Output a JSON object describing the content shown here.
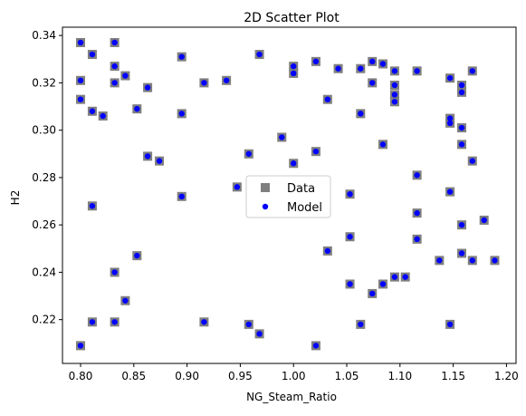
{
  "chart_data": {
    "type": "scatter",
    "title": "2D Scatter Plot",
    "xlabel": "NG_Steam_Ratio",
    "ylabel": "H2",
    "xlim": [
      0.783,
      1.209
    ],
    "ylim": [
      0.2015,
      0.3435
    ],
    "xticks": [
      0.8,
      0.85,
      0.9,
      0.95,
      1.0,
      1.05,
      1.1,
      1.15,
      1.2
    ],
    "xtick_labels": [
      "0.80",
      "0.85",
      "0.90",
      "0.95",
      "1.00",
      "1.05",
      "1.10",
      "1.15",
      "1.20"
    ],
    "yticks": [
      0.22,
      0.24,
      0.26,
      0.28,
      0.3,
      0.32,
      0.34
    ],
    "ytick_labels": [
      "0.22",
      "0.24",
      "0.26",
      "0.28",
      "0.30",
      "0.32",
      "0.34"
    ],
    "grid": false,
    "legend_position": "center",
    "series": [
      {
        "name": "Data",
        "marker": "square",
        "color": "#7f7f7f",
        "x": [
          0.8,
          0.8,
          0.8,
          0.8,
          0.811,
          0.811,
          0.811,
          0.811,
          0.821,
          0.832,
          0.832,
          0.832,
          0.832,
          0.832,
          0.842,
          0.842,
          0.853,
          0.853,
          0.863,
          0.863,
          0.874,
          0.895,
          0.895,
          0.895,
          0.916,
          0.916,
          0.937,
          0.947,
          0.958,
          0.958,
          0.968,
          0.968,
          0.989,
          1.0,
          1.0,
          1.0,
          1.021,
          1.021,
          1.021,
          1.032,
          1.032,
          1.042,
          1.053,
          1.053,
          1.053,
          1.063,
          1.063,
          1.063,
          1.074,
          1.074,
          1.074,
          1.084,
          1.084,
          1.084,
          1.095,
          1.095,
          1.095,
          1.095,
          1.095,
          1.105,
          1.116,
          1.116,
          1.116,
          1.116,
          1.137,
          1.147,
          1.147,
          1.147,
          1.147,
          1.147,
          1.158,
          1.158,
          1.158,
          1.158,
          1.158,
          1.158,
          1.168,
          1.168,
          1.168,
          1.179,
          1.189
        ],
        "y": [
          0.337,
          0.321,
          0.313,
          0.209,
          0.332,
          0.308,
          0.268,
          0.219,
          0.306,
          0.337,
          0.327,
          0.32,
          0.24,
          0.219,
          0.323,
          0.228,
          0.309,
          0.247,
          0.318,
          0.289,
          0.287,
          0.331,
          0.307,
          0.272,
          0.32,
          0.219,
          0.321,
          0.276,
          0.29,
          0.218,
          0.332,
          0.214,
          0.297,
          0.327,
          0.324,
          0.286,
          0.329,
          0.291,
          0.209,
          0.313,
          0.249,
          0.326,
          0.273,
          0.255,
          0.235,
          0.326,
          0.307,
          0.218,
          0.329,
          0.32,
          0.231,
          0.328,
          0.294,
          0.235,
          0.325,
          0.319,
          0.315,
          0.312,
          0.238,
          0.238,
          0.325,
          0.281,
          0.265,
          0.254,
          0.245,
          0.322,
          0.305,
          0.303,
          0.274,
          0.218,
          0.319,
          0.316,
          0.301,
          0.294,
          0.26,
          0.248,
          0.325,
          0.287,
          0.245,
          0.262,
          0.245
        ]
      },
      {
        "name": "Model",
        "marker": "circle",
        "color": "#0000ff",
        "x": [
          0.8,
          0.8,
          0.8,
          0.8,
          0.811,
          0.811,
          0.811,
          0.811,
          0.821,
          0.832,
          0.832,
          0.832,
          0.832,
          0.832,
          0.842,
          0.842,
          0.853,
          0.853,
          0.863,
          0.863,
          0.874,
          0.895,
          0.895,
          0.895,
          0.916,
          0.916,
          0.937,
          0.947,
          0.958,
          0.958,
          0.968,
          0.968,
          0.989,
          1.0,
          1.0,
          1.0,
          1.021,
          1.021,
          1.021,
          1.032,
          1.032,
          1.042,
          1.053,
          1.053,
          1.053,
          1.063,
          1.063,
          1.063,
          1.074,
          1.074,
          1.074,
          1.084,
          1.084,
          1.084,
          1.095,
          1.095,
          1.095,
          1.095,
          1.095,
          1.105,
          1.116,
          1.116,
          1.116,
          1.116,
          1.137,
          1.147,
          1.147,
          1.147,
          1.147,
          1.147,
          1.158,
          1.158,
          1.158,
          1.158,
          1.158,
          1.158,
          1.168,
          1.168,
          1.168,
          1.179,
          1.189
        ],
        "y": [
          0.337,
          0.321,
          0.313,
          0.209,
          0.332,
          0.308,
          0.268,
          0.219,
          0.306,
          0.337,
          0.327,
          0.32,
          0.24,
          0.219,
          0.323,
          0.228,
          0.309,
          0.247,
          0.318,
          0.289,
          0.287,
          0.331,
          0.307,
          0.272,
          0.32,
          0.219,
          0.321,
          0.276,
          0.29,
          0.218,
          0.332,
          0.214,
          0.297,
          0.327,
          0.324,
          0.286,
          0.329,
          0.291,
          0.209,
          0.313,
          0.249,
          0.326,
          0.273,
          0.255,
          0.235,
          0.326,
          0.307,
          0.218,
          0.329,
          0.32,
          0.231,
          0.328,
          0.294,
          0.235,
          0.325,
          0.319,
          0.315,
          0.312,
          0.238,
          0.238,
          0.325,
          0.281,
          0.265,
          0.254,
          0.245,
          0.322,
          0.305,
          0.303,
          0.274,
          0.218,
          0.319,
          0.316,
          0.301,
          0.294,
          0.26,
          0.248,
          0.325,
          0.287,
          0.245,
          0.262,
          0.245
        ]
      }
    ]
  }
}
